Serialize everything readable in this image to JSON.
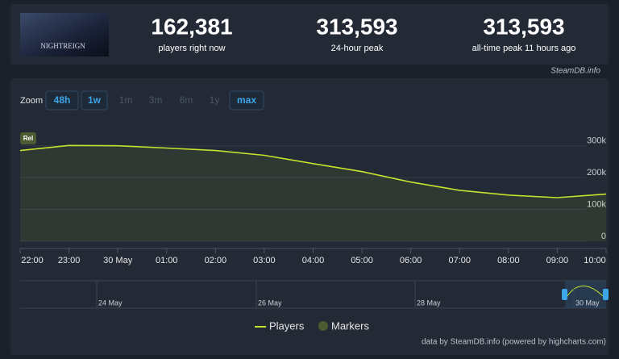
{
  "stats": [
    {
      "value": "162,381",
      "label": "players right now"
    },
    {
      "value": "313,593",
      "label": "24-hour peak"
    },
    {
      "value": "313,593",
      "label": "all-time peak 11 hours ago"
    }
  ],
  "thumbnail_text": "NIGHTREIGN",
  "source": "SteamDB.info",
  "zoom": {
    "label": "Zoom",
    "buttons": [
      {
        "label": "48h",
        "active": true
      },
      {
        "label": "1w",
        "active": true
      },
      {
        "label": "1m",
        "active": false
      },
      {
        "label": "3m",
        "active": false
      },
      {
        "label": "6m",
        "active": false
      },
      {
        "label": "1y",
        "active": false
      },
      {
        "label": "max",
        "active": true
      }
    ]
  },
  "chart_data": {
    "type": "line",
    "categories": [
      "22:00",
      "23:00",
      "30 May",
      "01:00",
      "02:00",
      "03:00",
      "04:00",
      "05:00",
      "06:00",
      "07:00",
      "08:00",
      "09:00",
      "10:00"
    ],
    "series": [
      {
        "name": "Players",
        "color": "#c6e22e",
        "values": [
          285000,
          301000,
          300000,
          293000,
          285000,
          270000,
          244000,
          219000,
          186000,
          160000,
          145000,
          137000,
          148000
        ]
      }
    ],
    "ylim": [
      0,
      350000
    ],
    "yticks": [
      0,
      {
        "value": 100000,
        "label": "100k"
      },
      {
        "value": 200000,
        "label": "200k"
      },
      {
        "value": 300000,
        "label": "300k"
      }
    ],
    "grid": true,
    "markers": {
      "name": "Markers",
      "color": "#4d5b33",
      "items": [
        {
          "label": "Rel"
        }
      ]
    },
    "navigator": {
      "labels": [
        "24 May",
        "26 May",
        "28 May",
        "30 May"
      ]
    }
  },
  "credit": "data by SteamDB.info (powered by highcharts.com)"
}
